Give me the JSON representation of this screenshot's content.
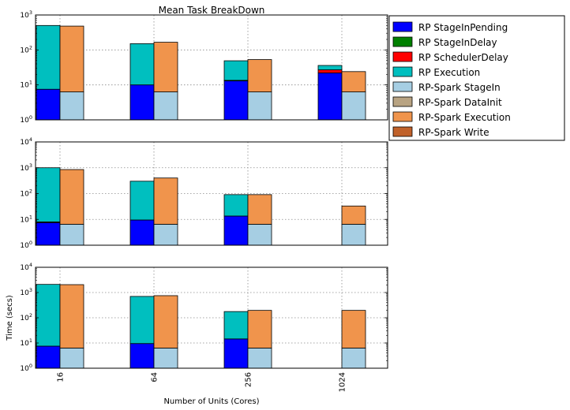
{
  "chart_data": {
    "type": "bar",
    "stacked": true,
    "title": "Mean Task BreakDown",
    "xlabel": "Number of Units (Cores)",
    "ylabel": "Time (secs)",
    "yscale": "log",
    "grid": true,
    "legend_position": "right",
    "categories": [
      "16",
      "64",
      "256",
      "1024"
    ],
    "series_colors": {
      "RP StageInPending": "#0000ff",
      "RP StageInDelay": "#008000",
      "RP SchedulerDelay": "#ff0000",
      "RP Execution": "#00bfbf",
      "RP-Spark StageIn": "#a6cee3",
      "RP-Spark DataInit": "#b8a382",
      "RP-Spark Execution": "#f0944c",
      "RP-Spark Write": "#c0612a"
    },
    "legend": [
      "RP StageInPending",
      "RP StageInDelay",
      "RP SchedulerDelay",
      "RP Execution",
      "RP-Spark StageIn",
      "RP-Spark DataInit",
      "RP-Spark Execution",
      "RP-Spark Write"
    ],
    "panels": [
      {
        "ylim": [
          1,
          1000
        ],
        "ytick_exponents": [
          0,
          1,
          2,
          3
        ],
        "rp_stacks": [
          {
            "RP StageInPending": 6.5,
            "RP StageInDelay": 0,
            "RP SchedulerDelay": 0,
            "RP Execution": 493.5
          },
          {
            "RP StageInPending": 9,
            "RP StageInDelay": 0,
            "RP SchedulerDelay": 0,
            "RP Execution": 141
          },
          {
            "RP StageInPending": 12,
            "RP StageInDelay": 0,
            "RP SchedulerDelay": 0.5,
            "RP Execution": 35.5
          },
          {
            "RP StageInPending": 21,
            "RP StageInDelay": 0,
            "RP SchedulerDelay": 5,
            "RP Execution": 9
          }
        ],
        "spark_stacks": [
          {
            "RP-Spark StageIn": 5.3,
            "RP-Spark DataInit": 0,
            "RP-Spark Execution": 474.7,
            "RP-Spark Write": 0
          },
          {
            "RP-Spark StageIn": 5.3,
            "RP-Spark DataInit": 0,
            "RP-Spark Execution": 159.7,
            "RP-Spark Write": 0
          },
          {
            "RP-Spark StageIn": 5.3,
            "RP-Spark DataInit": 0,
            "RP-Spark Execution": 46.7,
            "RP-Spark Write": 0
          },
          {
            "RP-Spark StageIn": 5.3,
            "RP-Spark DataInit": 0,
            "RP-Spark Execution": 17.7,
            "RP-Spark Write": 0
          }
        ]
      },
      {
        "ylim": [
          1,
          10000
        ],
        "ytick_exponents": [
          0,
          1,
          2,
          3,
          4
        ],
        "rp_stacks": [
          {
            "RP StageInPending": 6.5,
            "RP StageInDelay": 0,
            "RP SchedulerDelay": 0.5,
            "RP Execution": 993
          },
          {
            "RP StageInPending": 8.5,
            "RP StageInDelay": 0,
            "RP SchedulerDelay": 0,
            "RP Execution": 291.5
          },
          {
            "RP StageInPending": 12.5,
            "RP StageInDelay": 0,
            "RP SchedulerDelay": 0,
            "RP Execution": 77.5
          },
          {
            "RP StageInPending": 0,
            "RP StageInDelay": 0,
            "RP SchedulerDelay": 0,
            "RP Execution": 0
          }
        ],
        "spark_stacks": [
          {
            "RP-Spark StageIn": 5.5,
            "RP-Spark DataInit": 0,
            "RP-Spark Execution": 844.5,
            "RP-Spark Write": 0
          },
          {
            "RP-Spark StageIn": 5.5,
            "RP-Spark DataInit": 0,
            "RP-Spark Execution": 394.5,
            "RP-Spark Write": 0
          },
          {
            "RP-Spark StageIn": 5.5,
            "RP-Spark DataInit": 0,
            "RP-Spark Execution": 84.5,
            "RP-Spark Write": 0
          },
          {
            "RP-Spark StageIn": 5.5,
            "RP-Spark DataInit": 0,
            "RP-Spark Execution": 26.5,
            "RP-Spark Write": 0
          }
        ]
      },
      {
        "ylim": [
          1,
          10000
        ],
        "ytick_exponents": [
          0,
          1,
          2,
          3,
          4
        ],
        "rp_stacks": [
          {
            "RP StageInPending": 6.5,
            "RP StageInDelay": 0,
            "RP SchedulerDelay": 0,
            "RP Execution": 2093.5
          },
          {
            "RP StageInPending": 8.5,
            "RP StageInDelay": 0,
            "RP SchedulerDelay": 0,
            "RP Execution": 691.5
          },
          {
            "RP StageInPending": 13.5,
            "RP StageInDelay": 0,
            "RP SchedulerDelay": 0,
            "RP Execution": 161.5
          },
          {
            "RP StageInPending": 0,
            "RP StageInDelay": 0,
            "RP SchedulerDelay": 0,
            "RP Execution": 0
          }
        ],
        "spark_stacks": [
          {
            "RP-Spark StageIn": 5.3,
            "RP-Spark DataInit": 0,
            "RP-Spark Execution": 2044.7,
            "RP-Spark Write": 0
          },
          {
            "RP-Spark StageIn": 5.3,
            "RP-Spark DataInit": 0,
            "RP-Spark Execution": 744.7,
            "RP-Spark Write": 0
          },
          {
            "RP-Spark StageIn": 5.3,
            "RP-Spark DataInit": 0,
            "RP-Spark Execution": 189.7,
            "RP-Spark Write": 0
          },
          {
            "RP-Spark StageIn": 5.3,
            "RP-Spark DataInit": 0,
            "RP-Spark Execution": 189.7,
            "RP-Spark Write": 0
          }
        ]
      }
    ]
  }
}
